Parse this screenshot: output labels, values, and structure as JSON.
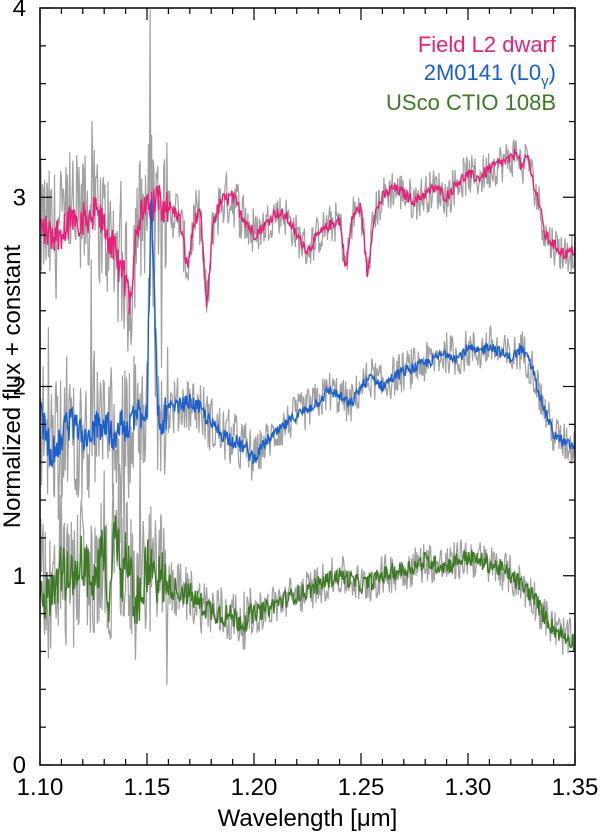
{
  "chart_data": {
    "type": "line",
    "xlabel": "Wavelength [μm]",
    "ylabel": "Normalized flux + constant",
    "xlim": [
      1.1,
      1.35
    ],
    "ylim": [
      0,
      4
    ],
    "x_ticks": [
      "1.10",
      "1.15",
      "1.20",
      "1.25",
      "1.30",
      "1.35"
    ],
    "y_ticks": [
      "0",
      "1",
      "2",
      "3",
      "4"
    ],
    "grid": false,
    "legend_position": "top-right",
    "legend": [
      {
        "text": "Field L2 dwarf",
        "color": "#e8207a"
      },
      {
        "text": "2M0141 (L0",
        "sub": "γ",
        "close": ")",
        "color": "#1a5fcf"
      },
      {
        "text": "USco CTIO 108B",
        "color": "#3c7a23"
      }
    ],
    "series": [
      {
        "color": "#e8207a",
        "x": [
          1.1,
          1.105,
          1.11,
          1.115,
          1.12,
          1.125,
          1.13,
          1.135,
          1.14,
          1.142,
          1.145,
          1.15,
          1.155,
          1.16,
          1.165,
          1.169,
          1.172,
          1.175,
          1.178,
          1.181,
          1.185,
          1.19,
          1.195,
          1.2,
          1.205,
          1.21,
          1.215,
          1.22,
          1.225,
          1.23,
          1.235,
          1.24,
          1.243,
          1.246,
          1.25,
          1.253,
          1.256,
          1.26,
          1.265,
          1.27,
          1.275,
          1.28,
          1.285,
          1.29,
          1.295,
          1.3,
          1.305,
          1.31,
          1.315,
          1.32,
          1.323,
          1.325,
          1.328,
          1.33,
          1.333,
          1.336,
          1.34,
          1.345,
          1.35
        ],
        "y": [
          2.85,
          2.8,
          2.82,
          2.9,
          2.88,
          2.92,
          2.85,
          2.7,
          2.55,
          2.45,
          2.85,
          2.95,
          2.98,
          2.95,
          2.9,
          2.62,
          2.88,
          2.9,
          2.4,
          2.88,
          2.98,
          3.0,
          2.9,
          2.8,
          2.85,
          2.92,
          2.9,
          2.8,
          2.72,
          2.8,
          2.85,
          2.88,
          2.62,
          2.9,
          2.95,
          2.58,
          2.9,
          3.0,
          3.05,
          3.02,
          2.98,
          3.02,
          3.05,
          3.0,
          3.08,
          3.12,
          3.1,
          3.15,
          3.18,
          3.2,
          3.25,
          3.15,
          3.22,
          3.1,
          2.98,
          2.8,
          2.75,
          2.7,
          2.72
        ]
      },
      {
        "color": "#1a5fcf",
        "x": [
          1.1,
          1.105,
          1.11,
          1.115,
          1.12,
          1.125,
          1.13,
          1.135,
          1.14,
          1.145,
          1.15,
          1.152,
          1.155,
          1.158,
          1.16,
          1.165,
          1.17,
          1.175,
          1.18,
          1.185,
          1.19,
          1.195,
          1.2,
          1.205,
          1.21,
          1.215,
          1.22,
          1.225,
          1.23,
          1.235,
          1.24,
          1.245,
          1.25,
          1.255,
          1.26,
          1.265,
          1.27,
          1.275,
          1.28,
          1.285,
          1.29,
          1.295,
          1.3,
          1.305,
          1.31,
          1.315,
          1.32,
          1.325,
          1.33,
          1.335,
          1.34,
          1.345,
          1.35
        ],
        "y": [
          1.85,
          1.65,
          1.75,
          1.8,
          1.72,
          1.78,
          1.8,
          1.75,
          1.8,
          1.85,
          1.9,
          3.05,
          1.8,
          1.85,
          1.88,
          1.9,
          1.92,
          1.88,
          1.8,
          1.75,
          1.72,
          1.68,
          1.62,
          1.7,
          1.75,
          1.8,
          1.85,
          1.88,
          1.92,
          1.98,
          1.95,
          1.9,
          2.0,
          2.05,
          2.0,
          2.05,
          2.08,
          2.1,
          2.12,
          2.15,
          2.18,
          2.15,
          2.2,
          2.18,
          2.22,
          2.18,
          2.15,
          2.2,
          2.1,
          1.9,
          1.75,
          1.7,
          1.68
        ]
      },
      {
        "color": "#3c7a23",
        "x": [
          1.1,
          1.105,
          1.11,
          1.115,
          1.12,
          1.125,
          1.13,
          1.133,
          1.135,
          1.138,
          1.14,
          1.145,
          1.15,
          1.155,
          1.16,
          1.165,
          1.17,
          1.175,
          1.18,
          1.185,
          1.19,
          1.195,
          1.2,
          1.205,
          1.21,
          1.215,
          1.22,
          1.225,
          1.23,
          1.235,
          1.24,
          1.245,
          1.25,
          1.255,
          1.26,
          1.265,
          1.27,
          1.275,
          1.28,
          1.285,
          1.29,
          1.295,
          1.3,
          1.305,
          1.31,
          1.315,
          1.32,
          1.325,
          1.33,
          1.335,
          1.34,
          1.345,
          1.35
        ],
        "y": [
          1.0,
          0.85,
          1.05,
          0.95,
          1.1,
          0.9,
          1.15,
          0.8,
          1.35,
          0.95,
          1.1,
          0.85,
          1.05,
          1.0,
          0.95,
          0.92,
          0.9,
          0.85,
          0.82,
          0.8,
          0.78,
          0.76,
          0.8,
          0.82,
          0.85,
          0.88,
          0.9,
          0.92,
          0.95,
          0.98,
          1.0,
          0.98,
          0.95,
          0.97,
          1.0,
          1.02,
          1.03,
          1.05,
          1.08,
          1.06,
          1.05,
          1.08,
          1.1,
          1.08,
          1.06,
          1.04,
          1.0,
          0.95,
          0.9,
          0.8,
          0.72,
          0.68,
          0.65
        ]
      }
    ],
    "comparison_spectra_color": "#a0a0a0"
  }
}
